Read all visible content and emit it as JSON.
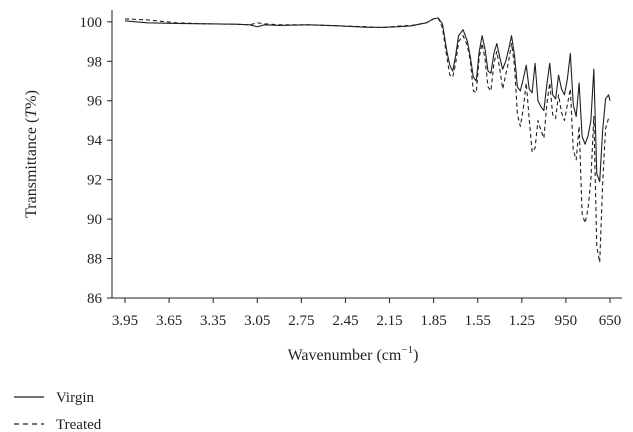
{
  "chart_data": {
    "type": "line",
    "title": "",
    "xlabel": "Wavenumber (cm",
    "xlabel_sup": "−1",
    "xlabel_close": ")",
    "ylabel": "Transmittance (",
    "ylabel_italic": "T",
    "ylabel_close": "%)",
    "xlim": [
      3950,
      650
    ],
    "ylim": [
      86,
      100.6
    ],
    "x_reversed": true,
    "grid": false,
    "legend_position": "below-left",
    "x_ticks": [
      {
        "value": 3950,
        "label": "3.95"
      },
      {
        "value": 3650,
        "label": "3.65"
      },
      {
        "value": 3350,
        "label": "3.35"
      },
      {
        "value": 3050,
        "label": "3.05"
      },
      {
        "value": 2750,
        "label": "2.75"
      },
      {
        "value": 2450,
        "label": "2.45"
      },
      {
        "value": 2150,
        "label": "2.15"
      },
      {
        "value": 1850,
        "label": "1.85"
      },
      {
        "value": 1550,
        "label": "1.55"
      },
      {
        "value": 1250,
        "label": "1.25"
      },
      {
        "value": 950,
        "label": "950"
      },
      {
        "value": 650,
        "label": "650"
      }
    ],
    "y_ticks": [
      {
        "value": 86,
        "label": "86"
      },
      {
        "value": 88,
        "label": "88"
      },
      {
        "value": 90,
        "label": "90"
      },
      {
        "value": 92,
        "label": "92"
      },
      {
        "value": 94,
        "label": "94"
      },
      {
        "value": 96,
        "label": "96"
      },
      {
        "value": 98,
        "label": "98"
      },
      {
        "value": 100,
        "label": "100"
      }
    ],
    "series": [
      {
        "name": "Virgin",
        "style": "solid",
        "color": "#231f20",
        "x": [
          3950,
          3800,
          3600,
          3400,
          3200,
          3100,
          3050,
          3000,
          2900,
          2700,
          2500,
          2300,
          2200,
          2100,
          2000,
          1900,
          1850,
          1820,
          1790,
          1760,
          1740,
          1720,
          1700,
          1680,
          1650,
          1620,
          1600,
          1580,
          1560,
          1540,
          1520,
          1500,
          1480,
          1460,
          1440,
          1420,
          1400,
          1380,
          1360,
          1340,
          1320,
          1300,
          1280,
          1260,
          1240,
          1220,
          1200,
          1180,
          1160,
          1140,
          1120,
          1100,
          1080,
          1060,
          1040,
          1020,
          1000,
          980,
          960,
          940,
          920,
          900,
          880,
          860,
          840,
          820,
          800,
          780,
          760,
          740,
          720,
          700,
          680,
          660,
          650
        ],
        "y": [
          100.05,
          99.95,
          99.92,
          99.9,
          99.88,
          99.85,
          99.75,
          99.85,
          99.82,
          99.85,
          99.8,
          99.72,
          99.72,
          99.75,
          99.8,
          99.95,
          100.15,
          100.2,
          99.9,
          98.5,
          97.8,
          97.5,
          98.3,
          99.3,
          99.6,
          99.0,
          98.2,
          97.2,
          97.0,
          98.5,
          99.3,
          98.6,
          97.5,
          97.4,
          98.4,
          98.9,
          98.2,
          97.6,
          98.0,
          98.6,
          99.3,
          98.3,
          96.7,
          96.5,
          97.1,
          97.8,
          96.6,
          96.4,
          97.9,
          96.0,
          95.7,
          95.5,
          96.8,
          97.9,
          96.3,
          96.1,
          97.3,
          96.6,
          96.3,
          97.1,
          98.4,
          95.8,
          95.2,
          96.9,
          94.2,
          93.8,
          94.2,
          95.0,
          97.6,
          92.3,
          91.9,
          94.5,
          96.1,
          96.3,
          96.0
        ]
      },
      {
        "name": "Treated",
        "style": "dashed",
        "color": "#231f20",
        "x": [
          3950,
          3800,
          3600,
          3400,
          3200,
          3100,
          3050,
          3000,
          2900,
          2700,
          2500,
          2300,
          2200,
          2100,
          2000,
          1900,
          1850,
          1820,
          1790,
          1760,
          1740,
          1720,
          1700,
          1680,
          1650,
          1620,
          1600,
          1580,
          1560,
          1540,
          1520,
          1500,
          1480,
          1460,
          1440,
          1420,
          1400,
          1380,
          1360,
          1340,
          1320,
          1300,
          1280,
          1260,
          1240,
          1220,
          1200,
          1180,
          1160,
          1140,
          1120,
          1100,
          1080,
          1060,
          1040,
          1020,
          1000,
          980,
          960,
          940,
          920,
          900,
          880,
          860,
          840,
          820,
          800,
          780,
          760,
          740,
          720,
          700,
          680,
          660,
          650
        ],
        "y": [
          100.15,
          100.1,
          99.95,
          99.9,
          99.88,
          99.85,
          99.95,
          99.9,
          99.85,
          99.85,
          99.8,
          99.75,
          99.7,
          99.78,
          99.82,
          99.95,
          100.15,
          100.2,
          99.7,
          98.2,
          97.3,
          97.2,
          97.9,
          99.0,
          99.3,
          98.8,
          98.0,
          96.5,
          96.4,
          98.2,
          98.9,
          98.1,
          96.7,
          96.5,
          97.9,
          98.5,
          97.6,
          96.6,
          97.3,
          98.0,
          98.9,
          97.8,
          95.3,
          94.7,
          95.6,
          96.9,
          95.1,
          93.4,
          93.6,
          95.0,
          94.5,
          94.1,
          95.8,
          96.9,
          95.3,
          95.1,
          96.3,
          95.4,
          95.0,
          95.8,
          96.6,
          93.5,
          93.0,
          94.7,
          90.3,
          89.8,
          90.5,
          92.0,
          95.2,
          88.6,
          87.8,
          91.8,
          94.6,
          95.1,
          95.0
        ]
      }
    ]
  }
}
